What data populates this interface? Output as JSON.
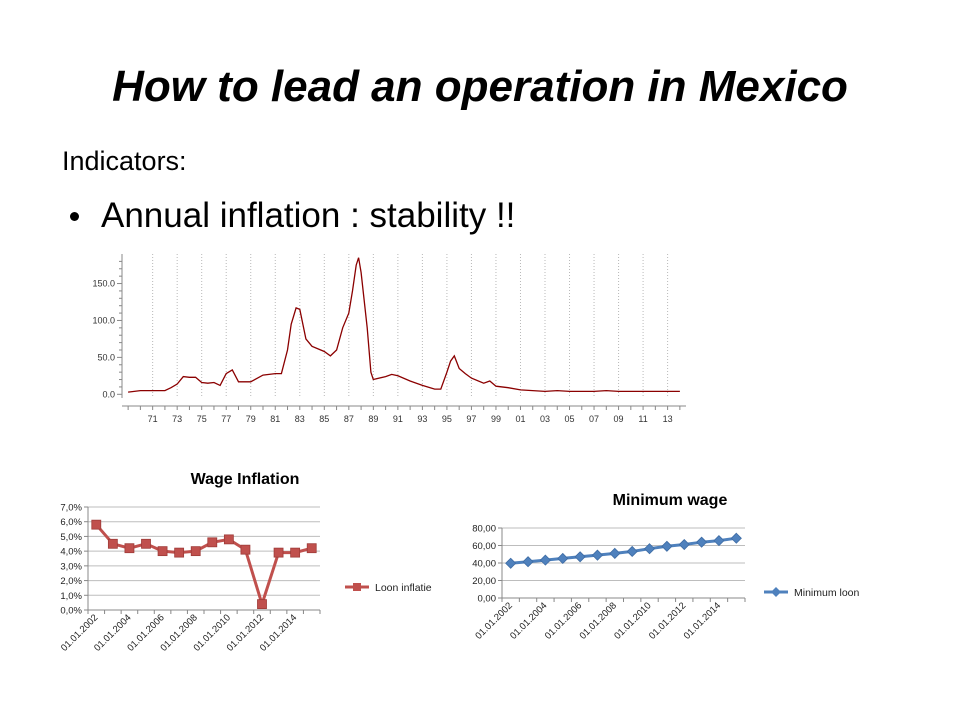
{
  "slide": {
    "title": "How to lead an operation in Mexico",
    "subtitle": "Indicators:",
    "bullet": "Annual inflation :  stability !!"
  },
  "colors": {
    "inflation_line": "#8b0000",
    "wage_series": "#c0504d",
    "minwage_series": "#4f81bd",
    "grid": "#d0d0d0"
  },
  "chart_data": [
    {
      "type": "line",
      "title": "",
      "xlabel": "",
      "ylabel": "",
      "ylim": [
        -5,
        190
      ],
      "xlim": [
        1968.5,
        2014.5
      ],
      "yticks": [
        "0.0",
        "50.0",
        "100.0",
        "150.0"
      ],
      "xticks": [
        "71",
        "73",
        "75",
        "77",
        "79",
        "81",
        "83",
        "85",
        "87",
        "89",
        "91",
        "93",
        "95",
        "97",
        "99",
        "01",
        "03",
        "05",
        "07",
        "09",
        "11",
        "13"
      ],
      "grid": "vertical dotted",
      "series": [
        {
          "x": [
            1969,
            1970,
            1971,
            1972,
            1972.5,
            1973,
            1973.5,
            1974,
            1974.5,
            1975,
            1975.5,
            1976,
            1976.5,
            1977,
            1977.5,
            1978,
            1979,
            1980,
            1981,
            1981.5,
            1982,
            1982.3,
            1982.7,
            1983,
            1983.5,
            1984,
            1985,
            1985.5,
            1986,
            1986.5,
            1987,
            1987.3,
            1987.6,
            1987.8,
            1988,
            1988.5,
            1988.8,
            1989,
            1990,
            1990.5,
            1991,
            1992,
            1993,
            1994,
            1994.5,
            1995,
            1995.3,
            1995.6,
            1996,
            1996.5,
            1997,
            1998,
            1998.5,
            1999,
            2000,
            2001,
            2002,
            2003,
            2004,
            2005,
            2006,
            2007,
            2008,
            2009,
            2010,
            2011,
            2012,
            2013,
            2014
          ],
          "y": [
            3,
            5,
            5,
            5,
            9,
            14,
            24,
            23,
            23,
            16,
            15,
            16,
            12,
            28,
            33,
            17,
            17,
            26,
            28,
            28,
            60,
            95,
            117,
            115,
            75,
            65,
            58,
            52,
            60,
            90,
            110,
            140,
            175,
            185,
            165,
            90,
            30,
            20,
            24,
            27,
            25,
            18,
            12,
            7,
            7,
            30,
            45,
            52,
            35,
            28,
            22,
            15,
            18,
            11,
            9,
            6,
            5,
            4,
            5,
            4,
            4,
            4,
            5,
            4,
            4,
            4,
            4,
            4,
            4
          ]
        }
      ]
    },
    {
      "type": "line",
      "title": "Wage Inflation",
      "xlabel": "",
      "ylabel": "",
      "ylim": [
        0,
        7
      ],
      "yticks": [
        "0,0%",
        "1,0%",
        "2,0%",
        "3,0%",
        "4,0%",
        "5,0%",
        "6,0%",
        "7,0%"
      ],
      "xticks": [
        "01.01.2002",
        "01.01.2004",
        "01.01.2006",
        "01.01.2008",
        "01.01.2010",
        "01.01.2012",
        "01.01.2014"
      ],
      "legend": "right",
      "grid": "horizontal",
      "series": [
        {
          "name": "Loon inflatie",
          "x": [
            "2002",
            "2003",
            "2004",
            "2005",
            "2006",
            "2007",
            "2008",
            "2009",
            "2010",
            "2011",
            "2012",
            "2013",
            "2014",
            "2015"
          ],
          "values": [
            5.8,
            4.5,
            4.2,
            4.5,
            4.0,
            3.9,
            4.0,
            4.6,
            4.8,
            4.1,
            0.4,
            3.9,
            3.9,
            4.2
          ]
        }
      ]
    },
    {
      "type": "line",
      "title": "Minimum wage",
      "xlabel": "",
      "ylabel": "",
      "ylim": [
        0,
        80
      ],
      "yticks": [
        "0,00",
        "20,00",
        "40,00",
        "60,00",
        "80,00"
      ],
      "xticks": [
        "01.01.2002",
        "01.01.2004",
        "01.01.2006",
        "01.01.2008",
        "01.01.2010",
        "01.01.2012",
        "01.01.2014"
      ],
      "legend": "right",
      "grid": "horizontal",
      "series": [
        {
          "name": "Minimum loon",
          "x": [
            "2002",
            "2003",
            "2004",
            "2005",
            "2006",
            "2007",
            "2008",
            "2009",
            "2010",
            "2011",
            "2012",
            "2013",
            "2014",
            "2015"
          ],
          "values": [
            39.7,
            41.5,
            43.3,
            45.2,
            47.1,
            49.0,
            51.0,
            53.2,
            56.3,
            59.1,
            61.1,
            63.8,
            65.6,
            68.3
          ]
        }
      ]
    }
  ]
}
